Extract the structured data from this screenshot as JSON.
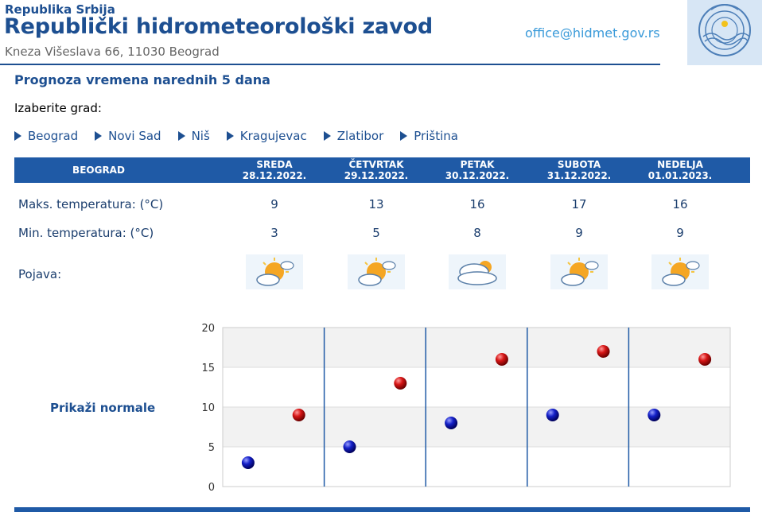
{
  "header": {
    "republic": "Republika Srbija",
    "institute": "Republički hidrometeorološki zavod",
    "address": "Kneza Višeslava 66, 11030 Beograd",
    "email": "office@hidmet.gov.rs"
  },
  "page": {
    "title": "Prognoza vremena narednih 5 dana",
    "choose_city": "Izaberite grad:",
    "cities": [
      "Beograd",
      "Novi Sad",
      "Niš",
      "Kragujevac",
      "Zlatibor",
      "Priština"
    ]
  },
  "forecast": {
    "city": "BEOGRAD",
    "days": [
      {
        "name": "SREDA",
        "date": "28.12.2022.",
        "max": "9",
        "min": "3",
        "icon": "sun-cloud-icon"
      },
      {
        "name": "ČETVRTAK",
        "date": "29.12.2022.",
        "max": "13",
        "min": "5",
        "icon": "sun-cloud-icon"
      },
      {
        "name": "PETAK",
        "date": "30.12.2022.",
        "max": "16",
        "min": "8",
        "icon": "cloud-sun-icon"
      },
      {
        "name": "SUBOTA",
        "date": "31.12.2022.",
        "max": "17",
        "min": "9",
        "icon": "sun-cloud-icon"
      },
      {
        "name": "NEDELJA",
        "date": "01.01.2023.",
        "max": "16",
        "min": "9",
        "icon": "sun-cloud-icon"
      }
    ],
    "labels": {
      "max": "Maks. temperatura: (°C)",
      "min": "Min. temperatura: (°C)",
      "phenomenon": "Pojava:"
    }
  },
  "normals_link": "Prikaži normale",
  "chart_data": {
    "type": "scatter",
    "categories": [
      "SREDA",
      "ČETVRTAK",
      "PETAK",
      "SUBOTA",
      "NEDELJA"
    ],
    "series": [
      {
        "values": [
          3,
          5,
          8,
          9,
          9
        ],
        "color": "#0a14b4"
      },
      {
        "values": [
          9,
          13,
          16,
          17,
          16
        ],
        "color": "#c81010"
      }
    ],
    "yticks": [
      0,
      5,
      10,
      15,
      20
    ],
    "ylim": [
      0,
      20
    ],
    "grid": true
  },
  "colors": {
    "brand": "#1d4f91",
    "table_header": "#1f5aa6",
    "email": "#3a9ad9"
  }
}
